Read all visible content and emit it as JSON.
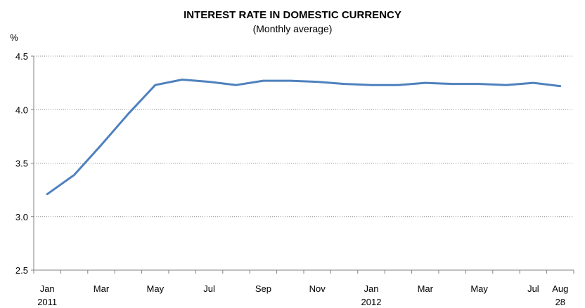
{
  "chart_data": {
    "type": "line",
    "title": "INTEREST RATE IN DOMESTIC CURRENCY",
    "subtitle": "(Monthly average)",
    "ylabel": "%",
    "ylim": [
      2.5,
      4.5
    ],
    "yticks": [
      "4.5",
      "4.0",
      "3.5",
      "3.0",
      "2.5"
    ],
    "grid": true,
    "x_labels": [
      {
        "month": "Jan",
        "year": "2011"
      },
      {
        "month": "",
        "year": ""
      },
      {
        "month": "Mar",
        "year": ""
      },
      {
        "month": "",
        "year": ""
      },
      {
        "month": "May",
        "year": ""
      },
      {
        "month": "",
        "year": ""
      },
      {
        "month": "Jul",
        "year": ""
      },
      {
        "month": "",
        "year": ""
      },
      {
        "month": "Sep",
        "year": ""
      },
      {
        "month": "",
        "year": ""
      },
      {
        "month": "Nov",
        "year": ""
      },
      {
        "month": "",
        "year": ""
      },
      {
        "month": "Jan",
        "year": "2012"
      },
      {
        "month": "",
        "year": ""
      },
      {
        "month": "Mar",
        "year": ""
      },
      {
        "month": "",
        "year": ""
      },
      {
        "month": "May",
        "year": ""
      },
      {
        "month": "",
        "year": ""
      },
      {
        "month": "Jul",
        "year": ""
      },
      {
        "month": "Aug",
        "year": "28"
      }
    ],
    "series": [
      {
        "color": "#4f81bd",
        "values": [
          3.21,
          3.39,
          3.67,
          3.96,
          4.23,
          4.28,
          4.26,
          4.23,
          4.27,
          4.27,
          4.26,
          4.24,
          4.23,
          4.23,
          4.25,
          4.24,
          4.24,
          4.23,
          4.25,
          4.22
        ]
      }
    ]
  }
}
